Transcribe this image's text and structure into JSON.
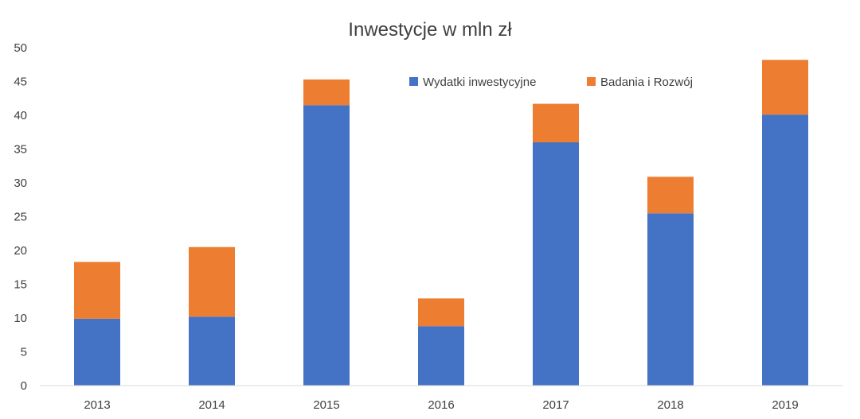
{
  "chart_data": {
    "type": "bar",
    "stacked": true,
    "title": "Inwestycje w mln zł",
    "xlabel": "",
    "ylabel": "",
    "categories": [
      "2013",
      "2014",
      "2015",
      "2016",
      "2017",
      "2018",
      "2019"
    ],
    "series": [
      {
        "name": "Wydatki inwestycyjne",
        "color": "#4472C4",
        "values": [
          9.9,
          10.2,
          41.5,
          8.8,
          36.0,
          25.5,
          40.1
        ]
      },
      {
        "name": "Badania i Rozwój",
        "color": "#ED7D31",
        "values": [
          8.4,
          10.3,
          3.8,
          4.1,
          5.7,
          5.4,
          8.1
        ]
      }
    ],
    "ylim": [
      0,
      50
    ],
    "yticks": [
      "0",
      "5",
      "10",
      "15",
      "20",
      "25",
      "30",
      "35",
      "40",
      "45",
      "50"
    ],
    "grid": false,
    "legend_position": "top-right"
  }
}
